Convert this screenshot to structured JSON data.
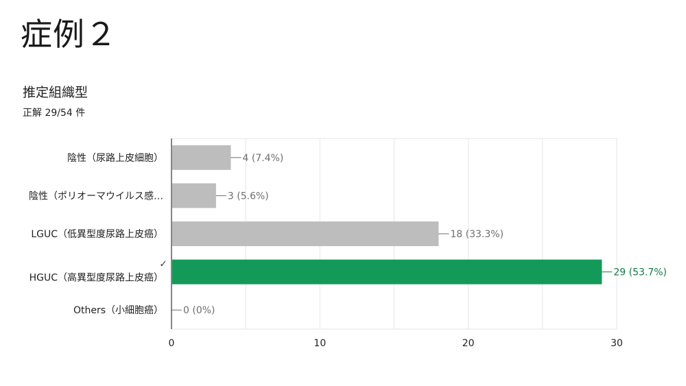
{
  "slide": {
    "title": "症例２"
  },
  "question": {
    "title": "推定組織型",
    "score": "正解 29/54 件"
  },
  "colors": {
    "default_bar": "#bdbdbd",
    "correct_bar": "#149a58",
    "correct_label": "#137847",
    "value_label": "#6d6d6d",
    "grid": "#e6e6e6",
    "axis": "#333333"
  },
  "chart_data": {
    "type": "bar",
    "orientation": "horizontal",
    "title": "推定組織型",
    "categories": [
      "陰性（尿路上皮細胞）",
      "陰性（ポリオーマウイルス感…",
      "LGUC（低異型度尿路上皮癌）",
      "HGUC（高異型度尿路上皮癌）",
      "Others（小細胞癌）"
    ],
    "values": [
      4,
      3,
      18,
      29,
      0
    ],
    "value_labels": [
      "4 (7.4%)",
      "3 (5.6%)",
      "18 (33.3%)",
      "29 (53.7%)",
      "0 (0%)"
    ],
    "correct_index": 3,
    "correct_mark": "✓",
    "xlim": [
      0,
      30
    ],
    "xticks": [
      0,
      10,
      20,
      30
    ],
    "grid": true
  }
}
